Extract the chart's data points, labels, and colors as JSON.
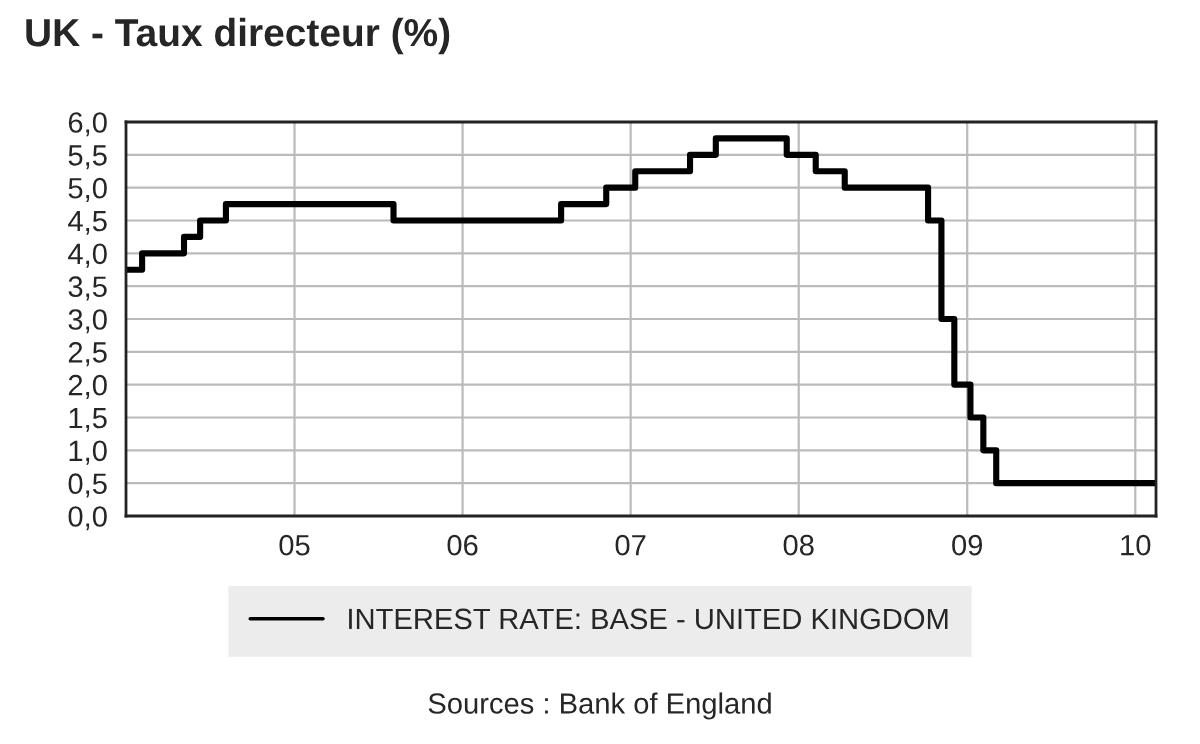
{
  "chart_data": {
    "type": "step",
    "title": "UK - Taux directeur (%)",
    "annotations": [
      "Sources : Bank of England"
    ],
    "x": [
      "2004-01-01",
      "2004-02-05",
      "2004-05-06",
      "2004-06-10",
      "2004-08-05",
      "2005-08-04",
      "2006-08-03",
      "2006-11-09",
      "2007-01-11",
      "2007-05-10",
      "2007-07-05",
      "2007-12-06",
      "2008-02-07",
      "2008-04-10",
      "2008-10-08",
      "2008-11-06",
      "2008-12-04",
      "2009-01-08",
      "2009-02-05",
      "2009-03-05",
      "2010-02-15"
    ],
    "series": [
      {
        "name": "INTEREST RATE: BASE - UNITED KINGDOM",
        "color": "#000000",
        "values": [
          3.75,
          4.0,
          4.25,
          4.5,
          4.75,
          4.5,
          4.75,
          5.0,
          5.25,
          5.5,
          5.75,
          5.5,
          5.25,
          5.0,
          4.5,
          3.0,
          2.0,
          1.5,
          1.0,
          0.5,
          0.5
        ]
      }
    ],
    "xlim": [
      "2004-01-01",
      "2010-02-15"
    ],
    "xticks": [
      {
        "value": "2005-01-01",
        "label": "05"
      },
      {
        "value": "2006-01-01",
        "label": "06"
      },
      {
        "value": "2007-01-01",
        "label": "07"
      },
      {
        "value": "2008-01-01",
        "label": "08"
      },
      {
        "value": "2009-01-01",
        "label": "09"
      },
      {
        "value": "2010-01-01",
        "label": "10"
      }
    ],
    "ylim": [
      0,
      6
    ],
    "yticks": [
      {
        "value": 0,
        "label": "0,0"
      },
      {
        "value": 0.5,
        "label": "0,5"
      },
      {
        "value": 1,
        "label": "1,0"
      },
      {
        "value": 1.5,
        "label": "1,5"
      },
      {
        "value": 2,
        "label": "2,0"
      },
      {
        "value": 2.5,
        "label": "2,5"
      },
      {
        "value": 3,
        "label": "3,0"
      },
      {
        "value": 3.5,
        "label": "3,5"
      },
      {
        "value": 4,
        "label": "4,0"
      },
      {
        "value": 4.5,
        "label": "4,5"
      },
      {
        "value": 5,
        "label": "5,0"
      },
      {
        "value": 5.5,
        "label": "5,5"
      },
      {
        "value": 6,
        "label": "6,0"
      }
    ],
    "grid": true,
    "legend": "bottom",
    "line_style": "solid"
  }
}
